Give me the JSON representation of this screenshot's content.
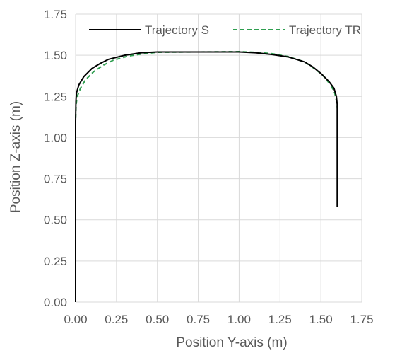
{
  "chart_data": {
    "type": "line",
    "title": "",
    "xlabel": "Position Y-axis (m)",
    "ylabel": "Position Z-axis (m)",
    "xlim": [
      0,
      1.75
    ],
    "ylim": [
      0,
      1.75
    ],
    "x_ticks": [
      "0.00",
      "0.25",
      "0.50",
      "0.75",
      "1.00",
      "1.25",
      "1.50",
      "1.75"
    ],
    "y_ticks": [
      "0.00",
      "0.25",
      "0.50",
      "0.75",
      "1.00",
      "1.25",
      "1.50",
      "1.75"
    ],
    "grid": true,
    "legend_position": "top",
    "series": [
      {
        "name": "Trajectory S",
        "color": "#000000",
        "dash": "solid",
        "points": [
          [
            0.0,
            0.0
          ],
          [
            0.0,
            0.6
          ],
          [
            0.0,
            1.1
          ],
          [
            0.002,
            1.22
          ],
          [
            0.005,
            1.27
          ],
          [
            0.02,
            1.32
          ],
          [
            0.05,
            1.37
          ],
          [
            0.1,
            1.42
          ],
          [
            0.15,
            1.45
          ],
          [
            0.2,
            1.475
          ],
          [
            0.3,
            1.5
          ],
          [
            0.4,
            1.515
          ],
          [
            0.5,
            1.52
          ],
          [
            0.75,
            1.52
          ],
          [
            1.0,
            1.52
          ],
          [
            1.1,
            1.515
          ],
          [
            1.2,
            1.505
          ],
          [
            1.3,
            1.49
          ],
          [
            1.4,
            1.46
          ],
          [
            1.45,
            1.43
          ],
          [
            1.5,
            1.39
          ],
          [
            1.55,
            1.34
          ],
          [
            1.58,
            1.3
          ],
          [
            1.595,
            1.25
          ],
          [
            1.6,
            1.2
          ],
          [
            1.6,
            0.9
          ],
          [
            1.6,
            0.58
          ]
        ]
      },
      {
        "name": "Trajectory TR",
        "color": "#2e9e4f",
        "dash": "dashed",
        "points": [
          [
            0.0,
            0.0
          ],
          [
            0.0,
            0.6
          ],
          [
            0.0,
            1.1
          ],
          [
            0.003,
            1.2
          ],
          [
            0.01,
            1.25
          ],
          [
            0.03,
            1.3
          ],
          [
            0.06,
            1.35
          ],
          [
            0.11,
            1.4
          ],
          [
            0.17,
            1.44
          ],
          [
            0.23,
            1.47
          ],
          [
            0.32,
            1.495
          ],
          [
            0.42,
            1.51
          ],
          [
            0.5,
            1.518
          ],
          [
            0.75,
            1.52
          ],
          [
            1.0,
            1.522
          ],
          [
            1.1,
            1.518
          ],
          [
            1.2,
            1.51
          ],
          [
            1.3,
            1.492
          ],
          [
            1.4,
            1.46
          ],
          [
            1.46,
            1.42
          ],
          [
            1.51,
            1.38
          ],
          [
            1.56,
            1.32
          ],
          [
            1.585,
            1.27
          ],
          [
            1.598,
            1.21
          ],
          [
            1.603,
            1.15
          ],
          [
            1.603,
            0.85
          ],
          [
            1.603,
            0.6
          ]
        ]
      }
    ]
  }
}
